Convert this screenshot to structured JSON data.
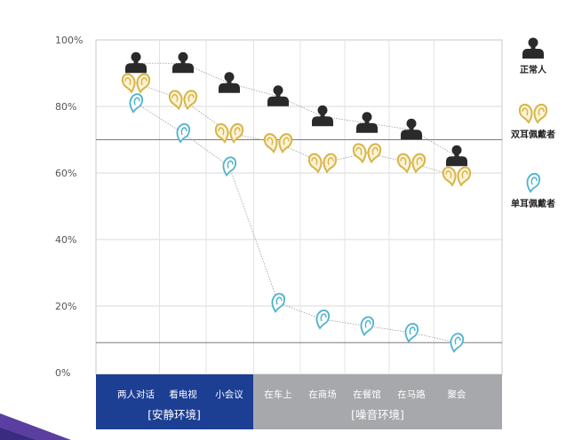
{
  "chart_data": {
    "type": "line",
    "title": "",
    "xlabel": "",
    "ylabel": "",
    "ylim": [
      0,
      100
    ],
    "yticks": [
      "100%",
      "80%",
      "60%",
      "40%",
      "20%",
      "0%"
    ],
    "categories": [
      "两人对话",
      "看电视",
      "小会议",
      "在车上",
      "在商场",
      "在餐馆",
      "在马路",
      "聚会"
    ],
    "groups": [
      {
        "label": "[安静环境]",
        "categories": [
          "两人对话",
          "看电视",
          "小会议"
        ]
      },
      {
        "label": "[噪音环境]",
        "categories": [
          "在车上",
          "在商场",
          "在餐馆",
          "在马路",
          "聚会"
        ]
      }
    ],
    "series": [
      {
        "name": "正常人",
        "icon": "person-icon",
        "color": "#2a2a2a",
        "values": [
          93,
          93,
          87,
          83,
          77,
          75,
          73,
          65
        ]
      },
      {
        "name": "双耳佩戴者",
        "icon": "two-ears-icon",
        "color": "#d8b54a",
        "values": [
          87,
          82,
          72,
          69,
          63,
          66,
          63,
          59
        ]
      },
      {
        "name": "单耳佩戴者",
        "icon": "ear-icon",
        "color": "#4fb3cf",
        "values": [
          81,
          72,
          62,
          21,
          16,
          14,
          12,
          9
        ]
      }
    ],
    "reference_lines": [
      70,
      9
    ],
    "grid": true,
    "legend_position": "right"
  }
}
